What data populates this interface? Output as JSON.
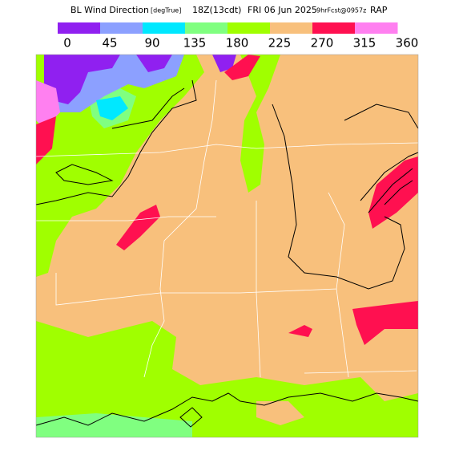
{
  "header": {
    "title": "BL Wind Direction",
    "units": "[degTrue]",
    "time": "18Z(13cdt)",
    "date": "FRI 06 Jun 2025",
    "forecast": "9hrFcst@0957z",
    "model": "RAP"
  },
  "colorbar": {
    "colors": [
      "#9020f0",
      "#8ca0ff",
      "#00e8ff",
      "#80ff80",
      "#a0ff00",
      "#f8c07c",
      "#ff1050",
      "#ff80f0"
    ],
    "labels": [
      0,
      45,
      90,
      135,
      180,
      225,
      270,
      315,
      360
    ]
  }
}
